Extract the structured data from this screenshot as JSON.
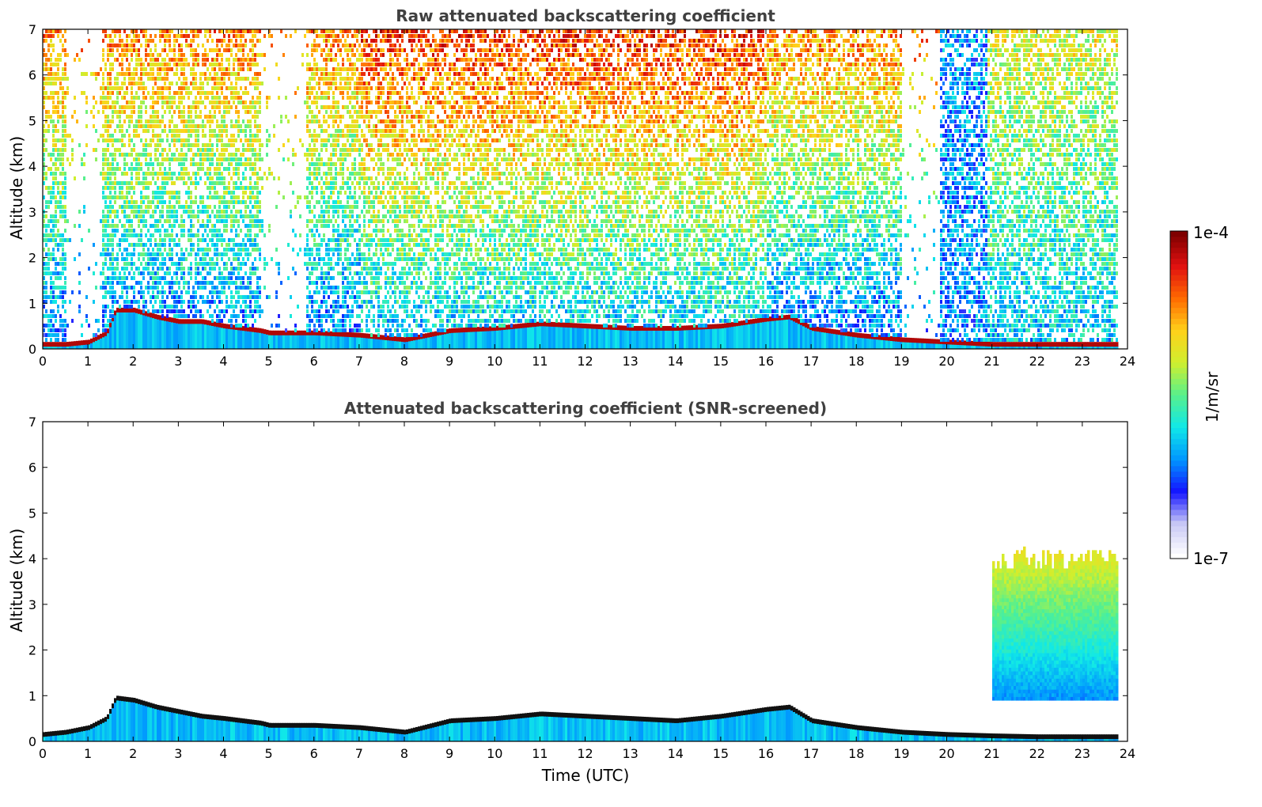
{
  "chart_data": [
    {
      "type": "heatmap",
      "title": "Raw attenuated backscattering coefficient",
      "xlabel": "",
      "ylabel": "Altitude (km)",
      "xlim": [
        0,
        24
      ],
      "ylim": [
        0,
        7
      ],
      "x_ticks": [
        "0",
        "1",
        "2",
        "3",
        "4",
        "5",
        "6",
        "7",
        "8",
        "9",
        "10",
        "11",
        "12",
        "13",
        "14",
        "15",
        "16",
        "17",
        "18",
        "19",
        "20",
        "21",
        "22",
        "23",
        "24"
      ],
      "y_ticks": [
        "0",
        "1",
        "2",
        "3",
        "4",
        "5",
        "6",
        "7"
      ],
      "data_extent_time": [
        0,
        23.8
      ],
      "boundary_layer_top_km": [
        [
          0,
          0.1
        ],
        [
          0.5,
          0.1
        ],
        [
          1.0,
          0.15
        ],
        [
          1.4,
          0.35
        ],
        [
          1.6,
          0.85
        ],
        [
          2.0,
          0.85
        ],
        [
          2.5,
          0.7
        ],
        [
          3.0,
          0.6
        ],
        [
          3.5,
          0.6
        ],
        [
          4.0,
          0.5
        ],
        [
          4.8,
          0.4
        ],
        [
          5.0,
          0.35
        ],
        [
          6.0,
          0.35
        ],
        [
          7.0,
          0.3
        ],
        [
          8.0,
          0.2
        ],
        [
          9.0,
          0.4
        ],
        [
          10.0,
          0.45
        ],
        [
          11.0,
          0.55
        ],
        [
          12.0,
          0.5
        ],
        [
          13.0,
          0.45
        ],
        [
          14.0,
          0.45
        ],
        [
          15.0,
          0.5
        ],
        [
          16.0,
          0.65
        ],
        [
          16.5,
          0.7
        ],
        [
          17.0,
          0.45
        ],
        [
          18.0,
          0.3
        ],
        [
          19.0,
          0.2
        ],
        [
          20.0,
          0.15
        ],
        [
          21.0,
          0.1
        ],
        [
          22.0,
          0.1
        ],
        [
          23.0,
          0.1
        ],
        [
          23.8,
          0.1
        ]
      ],
      "notes_visible": "noisy signal throughout column; low-signal gaps near 0.5–1.3 h, 4.8–5.8 h, 19–19.8 h"
    },
    {
      "type": "heatmap",
      "title": "Attenuated backscattering coefficient (SNR-screened)",
      "xlabel": "Time (UTC)",
      "ylabel": "Altitude (km)",
      "xlim": [
        0,
        24
      ],
      "ylim": [
        0,
        7
      ],
      "x_ticks": [
        "0",
        "1",
        "2",
        "3",
        "4",
        "5",
        "6",
        "7",
        "8",
        "9",
        "10",
        "11",
        "12",
        "13",
        "14",
        "15",
        "16",
        "17",
        "18",
        "19",
        "20",
        "21",
        "22",
        "23",
        "24"
      ],
      "y_ticks": [
        "0",
        "1",
        "2",
        "3",
        "4",
        "5",
        "6",
        "7"
      ],
      "data_extent_time": [
        0,
        23.8
      ],
      "boundary_layer_top_km": [
        [
          0,
          0.15
        ],
        [
          0.5,
          0.2
        ],
        [
          1.0,
          0.3
        ],
        [
          1.4,
          0.5
        ],
        [
          1.6,
          0.95
        ],
        [
          2.0,
          0.9
        ],
        [
          2.5,
          0.75
        ],
        [
          3.0,
          0.65
        ],
        [
          3.5,
          0.55
        ],
        [
          4.0,
          0.5
        ],
        [
          4.8,
          0.4
        ],
        [
          5.0,
          0.35
        ],
        [
          6.0,
          0.35
        ],
        [
          7.0,
          0.3
        ],
        [
          8.0,
          0.2
        ],
        [
          9.0,
          0.45
        ],
        [
          10.0,
          0.5
        ],
        [
          11.0,
          0.6
        ],
        [
          12.0,
          0.55
        ],
        [
          13.0,
          0.5
        ],
        [
          14.0,
          0.45
        ],
        [
          15.0,
          0.55
        ],
        [
          16.0,
          0.7
        ],
        [
          16.5,
          0.75
        ],
        [
          17.0,
          0.45
        ],
        [
          18.0,
          0.3
        ],
        [
          19.0,
          0.2
        ],
        [
          20.0,
          0.15
        ],
        [
          21.0,
          0.12
        ],
        [
          22.0,
          0.1
        ],
        [
          23.0,
          0.1
        ],
        [
          23.8,
          0.1
        ]
      ],
      "upper_layer_after_21h_km": [
        0.9,
        4.2
      ]
    }
  ],
  "colorbar": {
    "label": "1/m/sr",
    "max_label": "1e-4",
    "min_label": "1e-7",
    "scale": "log",
    "colormap": [
      "#ffffff",
      "#c9c9f5",
      "#1414ff",
      "#0096ff",
      "#10e8e8",
      "#58f08c",
      "#cfef2e",
      "#ffd21a",
      "#ff6a00",
      "#e01010",
      "#7f0000"
    ]
  }
}
